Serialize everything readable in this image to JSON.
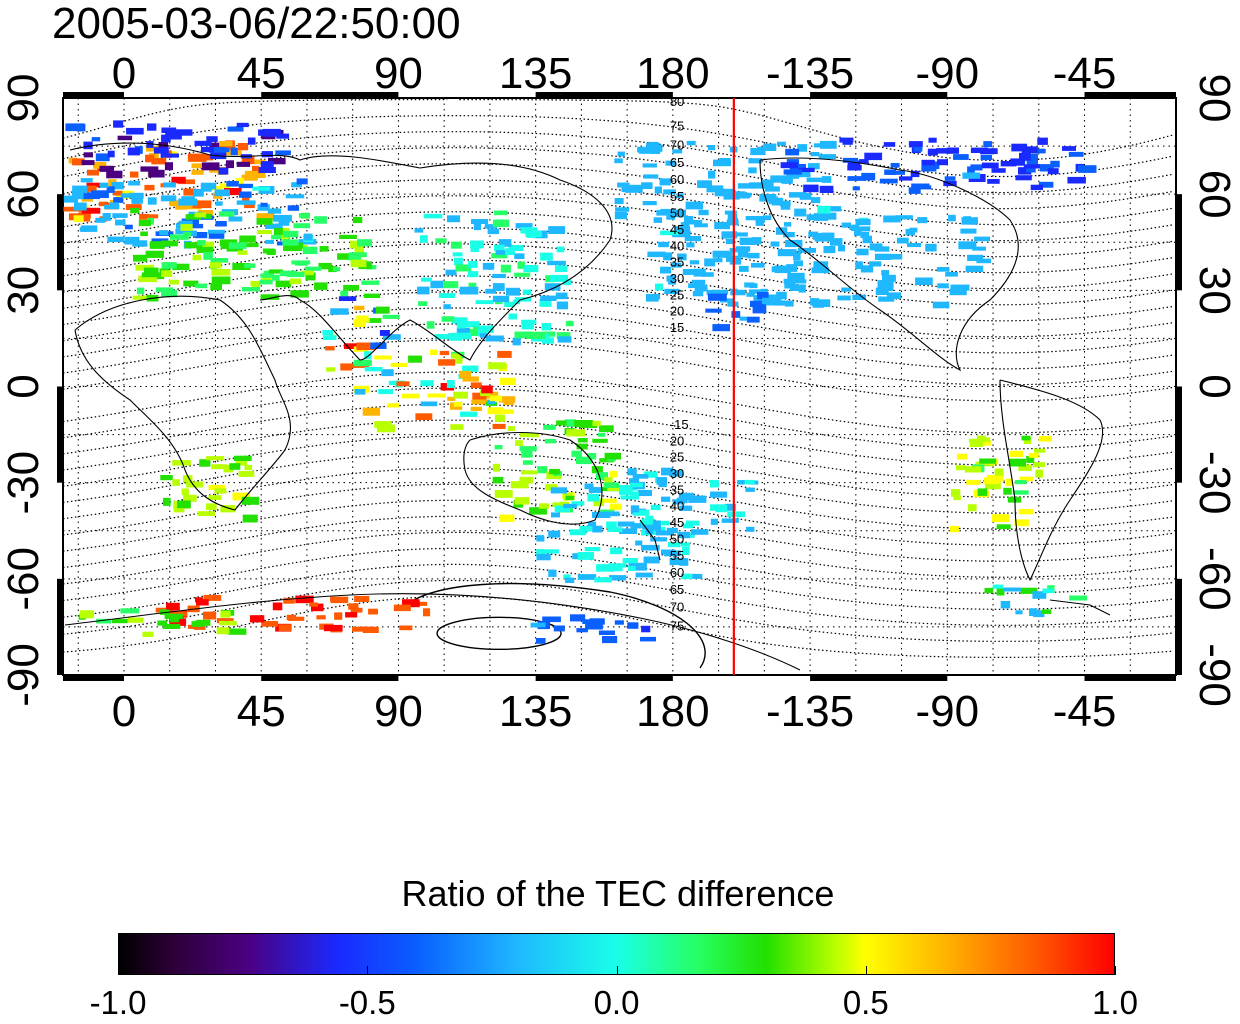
{
  "title": "2005-03-06/22:50:00",
  "map": {
    "top_lon_labels": [
      "0",
      "45",
      "90",
      "135",
      "180",
      "-135",
      "-90",
      "-45"
    ],
    "bottom_lon_labels": [
      "0",
      "45",
      "90",
      "135",
      "180",
      "-135",
      "-90",
      "-45"
    ],
    "left_lat_labels": [
      "90",
      "60",
      "30",
      "0",
      "-30",
      "-60",
      "-90"
    ],
    "right_lat_labels": [
      "90",
      "60",
      "30",
      "0",
      "-30",
      "-60",
      "-90"
    ],
    "lon_range": [
      -20,
      345
    ],
    "lat_range": [
      -90,
      90
    ],
    "grid": "dotted, every 15 degrees",
    "magnetic_lat_labels_north": [
      "80",
      "75",
      "70",
      "65",
      "60",
      "55",
      "50",
      "45",
      "40",
      "35",
      "30",
      "25",
      "20",
      "15"
    ],
    "magnetic_lat_labels_south": [
      "-15",
      "20",
      "25",
      "30",
      "35",
      "40",
      "45",
      "50",
      "55",
      "60",
      "65",
      "70",
      "75"
    ],
    "reference_line_longitude": 200,
    "reference_line_color": "#ff0000"
  },
  "colorbar": {
    "title": "Ratio of the TEC difference",
    "tick_labels": [
      "-1.0",
      "-0.5",
      "0.0",
      "0.5",
      "1.0"
    ],
    "range": [
      -1.0,
      1.0
    ]
  }
}
